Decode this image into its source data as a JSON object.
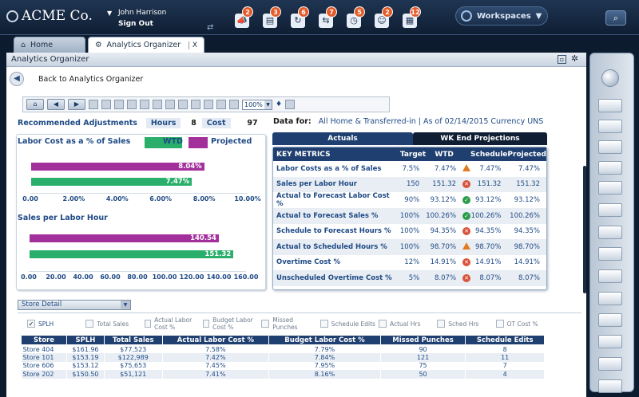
{
  "app": {
    "brand": "ACME Co.",
    "user_name": "John Harrison",
    "sign_out": "Sign Out",
    "workspaces": "Workspaces"
  },
  "top_icons": [
    {
      "name": "megaphone-icon",
      "badge": "2"
    },
    {
      "name": "clipboard-icon",
      "badge": "3"
    },
    {
      "name": "refresh-icon",
      "badge": "6"
    },
    {
      "name": "swap-icon",
      "badge": "7"
    },
    {
      "name": "clock-icon",
      "badge": "5"
    },
    {
      "name": "users-icon",
      "badge": "2"
    },
    {
      "name": "calendar-icon",
      "badge": "12"
    }
  ],
  "tabs": [
    {
      "label": "Home"
    },
    {
      "label": "Analytics Organizer",
      "close": "X"
    }
  ],
  "panel": {
    "title": "Analytics Organizer",
    "back_label": "Back to Analytics Organizer"
  },
  "toolbar": {
    "zoom": "100%"
  },
  "recommended": {
    "label": "Recommended Adjustments",
    "hours_label": "Hours",
    "hours_value": "8",
    "cost_label": "Cost",
    "cost_value": "97"
  },
  "data_for": {
    "label": "Data for:",
    "value": "All Home & Transferred-in  |  As of 02/14/2015  Currency UNS"
  },
  "chart_data": [
    {
      "type": "bar",
      "title": "Labor Cost as a % of Sales",
      "series": [
        {
          "name": "WTD",
          "values": [
            7.47
          ],
          "color": "#2aae6b"
        },
        {
          "name": "Projected",
          "values": [
            8.04
          ],
          "color": "#a3319c"
        }
      ],
      "ticks": [
        "0.00",
        "2.00%",
        "4.00%",
        "6.00%",
        "8.00%",
        "10.00%"
      ],
      "xlim": [
        0,
        10
      ],
      "bar_labels": [
        "8.04%",
        "7.47%"
      ]
    },
    {
      "type": "bar",
      "title": "Sales per Labor Hour",
      "series": [
        {
          "name": "Projected",
          "values": [
            140.54
          ],
          "color": "#a3319c"
        },
        {
          "name": "WTD",
          "values": [
            151.32
          ],
          "color": "#2aae6b"
        }
      ],
      "ticks": [
        "0.00",
        "20.00",
        "40.00",
        "60.00",
        "80.00",
        "100.00",
        "120.00",
        "140.00",
        "160.00"
      ],
      "xlim": [
        0,
        160
      ],
      "bar_labels": [
        "140.54",
        "151.32"
      ]
    }
  ],
  "metrics": {
    "tabs": [
      "Actuals",
      "WK End Projections"
    ],
    "headers": [
      "KEY METRICS",
      "Target",
      "WTD",
      "",
      "Schedule",
      "Projected"
    ],
    "rows": [
      [
        "Labor Costs as a % of Sales",
        "7.5%",
        "7.47%",
        "warn",
        "7.47%",
        "7.47%"
      ],
      [
        "Sales per Labor Hour",
        "150",
        "151.32",
        "bad",
        "151.32",
        "151.32"
      ],
      [
        "Actual to Forecast Labor Cost %",
        "90%",
        "93.12%",
        "ok",
        "93.12%",
        "93.12%"
      ],
      [
        "Actual to Forecast Sales %",
        "100%",
        "100.26%",
        "ok",
        "100.26%",
        "100.26%"
      ],
      [
        "Schedule to Forecast Hours %",
        "100%",
        "94.35%",
        "bad",
        "94.35%",
        "94.35%"
      ],
      [
        "Actual to Scheduled Hours %",
        "100%",
        "98.70%",
        "warn",
        "98.70%",
        "98.70%"
      ],
      [
        "Overtime Cost %",
        "12%",
        "14.91%",
        "bad",
        "14.91%",
        "14.91%"
      ],
      [
        "Unscheduled Overtime Cost %",
        "5%",
        "8.07%",
        "bad",
        "8.07%",
        "8.07%"
      ]
    ]
  },
  "store_detail": {
    "select": "Store Detail",
    "checkboxes": [
      {
        "label": "SPLH",
        "checked": true
      },
      {
        "label": "Total Sales"
      },
      {
        "label": "Actual Labor Cost %"
      },
      {
        "label": "Budget Labor Cost %"
      },
      {
        "label": "Missed Punches"
      },
      {
        "label": "Schedule Edits"
      },
      {
        "label": "Actual Hrs"
      },
      {
        "label": "Sched Hrs"
      },
      {
        "label": "OT Cost %"
      }
    ],
    "headers": [
      "Store",
      "SPLH",
      "Total Sales",
      "Actual Labor Cost %",
      "Budget Labor Cost %",
      "Missed Punches",
      "Schedule Edits"
    ],
    "rows": [
      [
        "Store 404",
        "$161.96",
        "$77,523",
        "7.58%",
        "7.79%",
        "90",
        "8"
      ],
      [
        "Store 101",
        "$153.19",
        "$122,989",
        "7.42%",
        "7.84%",
        "121",
        "11"
      ],
      [
        "Store 606",
        "$153.12",
        "$75,653",
        "7.45%",
        "7.95%",
        "75",
        "7"
      ],
      [
        "Store 202",
        "$150.50",
        "$51,121",
        "7.41%",
        "8.16%",
        "50",
        "4"
      ]
    ]
  }
}
